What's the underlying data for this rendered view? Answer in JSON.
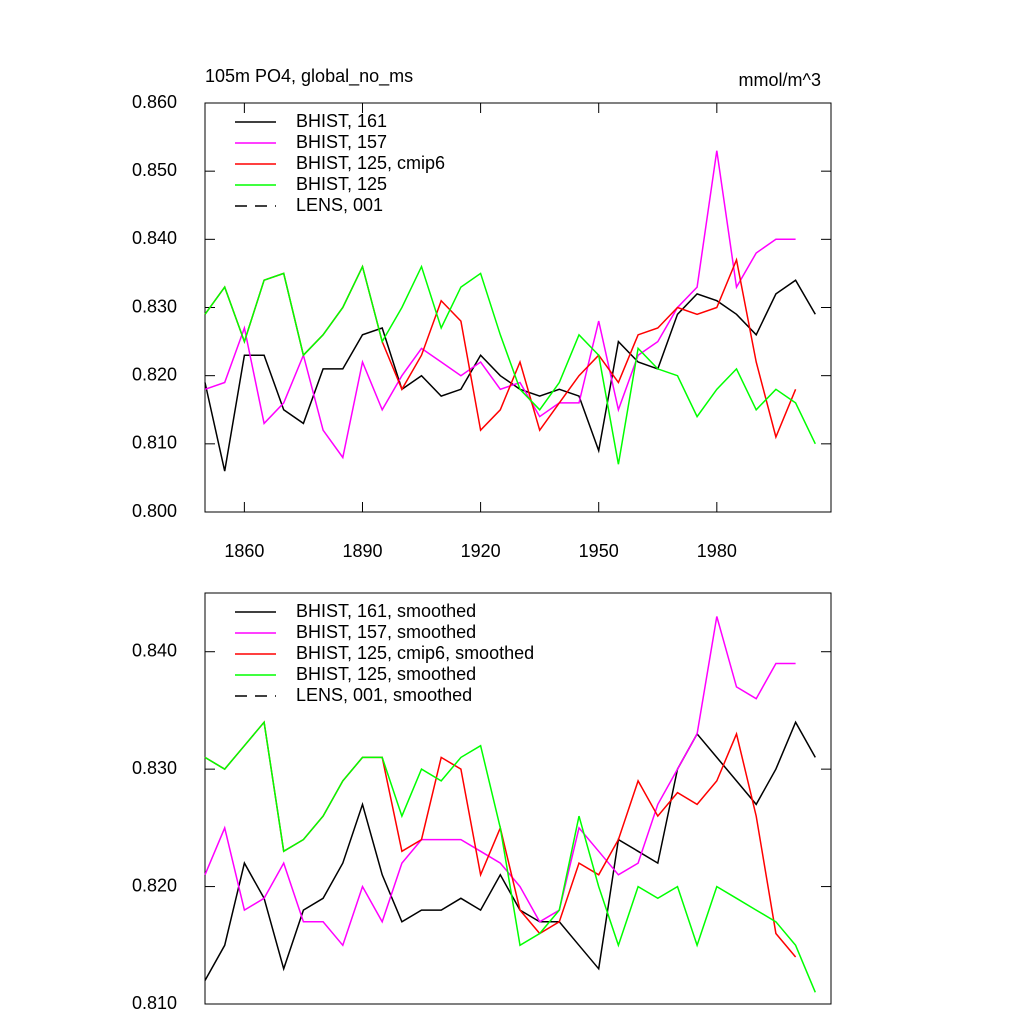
{
  "chart_data": [
    {
      "type": "line",
      "title": "105m PO4, global_no_ms",
      "units": "mmol/m^3",
      "x": [
        1850,
        1855,
        1860,
        1865,
        1870,
        1875,
        1880,
        1885,
        1890,
        1895,
        1900,
        1905,
        1910,
        1915,
        1920,
        1925,
        1930,
        1935,
        1940,
        1945,
        1950,
        1955,
        1960,
        1965,
        1970,
        1975,
        1980,
        1985,
        1990,
        1995,
        2000,
        2005
      ],
      "xlim": [
        1850,
        2009
      ],
      "xticks": [
        1860,
        1890,
        1920,
        1950,
        1980
      ],
      "ylim": [
        0.8,
        0.86
      ],
      "yticks": [
        {
          "value": 0.8,
          "label": "0.800"
        },
        {
          "value": 0.81,
          "label": "0.810"
        },
        {
          "value": 0.82,
          "label": "0.820"
        },
        {
          "value": 0.83,
          "label": "0.830"
        },
        {
          "value": 0.84,
          "label": "0.840"
        },
        {
          "value": 0.85,
          "label": "0.850"
        },
        {
          "value": 0.86,
          "label": "0.860"
        }
      ],
      "series": [
        {
          "name": "BHIST, 161",
          "color": "#000000",
          "values": [
            0.819,
            0.806,
            0.823,
            0.823,
            0.815,
            0.813,
            0.821,
            0.821,
            0.826,
            0.827,
            0.818,
            0.82,
            0.817,
            0.818,
            0.823,
            0.82,
            0.818,
            0.817,
            0.818,
            0.817,
            0.809,
            0.825,
            0.822,
            0.821,
            0.829,
            0.832,
            0.831,
            0.829,
            0.826,
            0.832,
            0.834,
            0.829
          ]
        },
        {
          "name": "BHIST, 157",
          "color": "#ff00ff",
          "values": [
            0.818,
            0.819,
            0.827,
            0.813,
            0.816,
            0.823,
            0.812,
            0.808,
            0.822,
            0.815,
            0.82,
            0.824,
            0.822,
            0.82,
            0.822,
            0.818,
            0.819,
            0.814,
            0.816,
            0.816,
            0.828,
            0.815,
            0.823,
            0.825,
            0.83,
            0.833,
            0.853,
            0.833,
            0.838,
            0.84,
            0.84,
            null
          ]
        },
        {
          "name": "BHIST, 125, cmip6",
          "color": "#ff0000",
          "values": [
            0.829,
            0.833,
            0.825,
            0.834,
            0.835,
            0.823,
            0.826,
            0.83,
            0.836,
            0.825,
            0.818,
            0.823,
            0.831,
            0.828,
            0.812,
            0.815,
            0.822,
            0.812,
            0.816,
            0.82,
            0.823,
            0.819,
            0.826,
            0.827,
            0.83,
            0.829,
            0.83,
            0.837,
            0.822,
            0.811,
            0.818,
            null
          ]
        },
        {
          "name": "BHIST, 125",
          "color": "#00ff00",
          "values": [
            0.829,
            0.833,
            0.825,
            0.834,
            0.835,
            0.823,
            0.826,
            0.83,
            0.836,
            0.825,
            0.83,
            0.836,
            0.827,
            0.833,
            0.835,
            0.826,
            0.818,
            0.815,
            0.819,
            0.826,
            0.823,
            0.807,
            0.824,
            0.821,
            0.82,
            0.814,
            0.818,
            0.821,
            0.815,
            0.818,
            0.816,
            0.81
          ]
        },
        {
          "name": "LENS, 001",
          "color": "#000000",
          "dashed": true,
          "values": [
            null,
            null,
            null,
            null,
            null,
            null,
            null,
            null,
            null,
            null,
            null,
            null,
            null,
            null,
            null,
            null,
            null,
            null,
            null,
            null,
            null,
            null,
            null,
            null,
            null,
            null,
            null,
            null,
            null,
            null,
            null,
            null
          ]
        }
      ]
    },
    {
      "type": "line",
      "x": [
        1850,
        1855,
        1860,
        1865,
        1870,
        1875,
        1880,
        1885,
        1890,
        1895,
        1900,
        1905,
        1910,
        1915,
        1920,
        1925,
        1930,
        1935,
        1940,
        1945,
        1950,
        1955,
        1960,
        1965,
        1970,
        1975,
        1980,
        1985,
        1990,
        1995,
        2000,
        2005
      ],
      "xlim": [
        1850,
        2009
      ],
      "ylim": [
        0.81,
        0.845
      ],
      "yticks": [
        {
          "value": 0.81,
          "label": "0.810"
        },
        {
          "value": 0.82,
          "label": "0.820"
        },
        {
          "value": 0.83,
          "label": "0.830"
        },
        {
          "value": 0.84,
          "label": "0.840"
        }
      ],
      "series": [
        {
          "name": "BHIST, 161, smoothed",
          "color": "#000000",
          "values": [
            0.812,
            0.815,
            0.822,
            0.819,
            0.813,
            0.818,
            0.819,
            0.822,
            0.827,
            0.821,
            0.817,
            0.818,
            0.818,
            0.819,
            0.818,
            0.821,
            0.818,
            0.817,
            0.817,
            0.815,
            0.813,
            0.824,
            0.823,
            0.822,
            0.83,
            0.833,
            0.831,
            0.829,
            0.827,
            0.83,
            0.834,
            0.831
          ]
        },
        {
          "name": "BHIST, 157, smoothed",
          "color": "#ff00ff",
          "values": [
            0.821,
            0.825,
            0.818,
            0.819,
            0.822,
            0.817,
            0.817,
            0.815,
            0.82,
            0.817,
            0.822,
            0.824,
            0.824,
            0.824,
            0.823,
            0.822,
            0.82,
            0.817,
            0.818,
            0.825,
            0.823,
            0.821,
            0.822,
            0.827,
            0.83,
            0.833,
            0.843,
            0.837,
            0.836,
            0.839,
            0.839,
            null
          ]
        },
        {
          "name": "BHIST, 125, cmip6, smoothed",
          "color": "#ff0000",
          "values": [
            0.831,
            0.83,
            0.832,
            0.834,
            0.823,
            0.824,
            0.826,
            0.829,
            0.831,
            0.831,
            0.823,
            0.824,
            0.831,
            0.83,
            0.821,
            0.825,
            0.818,
            0.816,
            0.817,
            0.822,
            0.821,
            0.824,
            0.829,
            0.826,
            0.828,
            0.827,
            0.829,
            0.833,
            0.826,
            0.816,
            0.814,
            null
          ]
        },
        {
          "name": "BHIST, 125, smoothed",
          "color": "#00ff00",
          "values": [
            0.831,
            0.83,
            0.832,
            0.834,
            0.823,
            0.824,
            0.826,
            0.829,
            0.831,
            0.831,
            0.826,
            0.83,
            0.829,
            0.831,
            0.832,
            0.825,
            0.815,
            0.816,
            0.818,
            0.826,
            0.82,
            0.815,
            0.82,
            0.819,
            0.82,
            0.815,
            0.82,
            0.819,
            0.818,
            0.817,
            0.815,
            0.811
          ]
        },
        {
          "name": "LENS, 001, smoothed",
          "color": "#000000",
          "dashed": true,
          "values": [
            null,
            null,
            null,
            null,
            null,
            null,
            null,
            null,
            null,
            null,
            null,
            null,
            null,
            null,
            null,
            null,
            null,
            null,
            null,
            null,
            null,
            null,
            null,
            null,
            null,
            null,
            null,
            null,
            null,
            null,
            null,
            null
          ]
        }
      ]
    }
  ]
}
